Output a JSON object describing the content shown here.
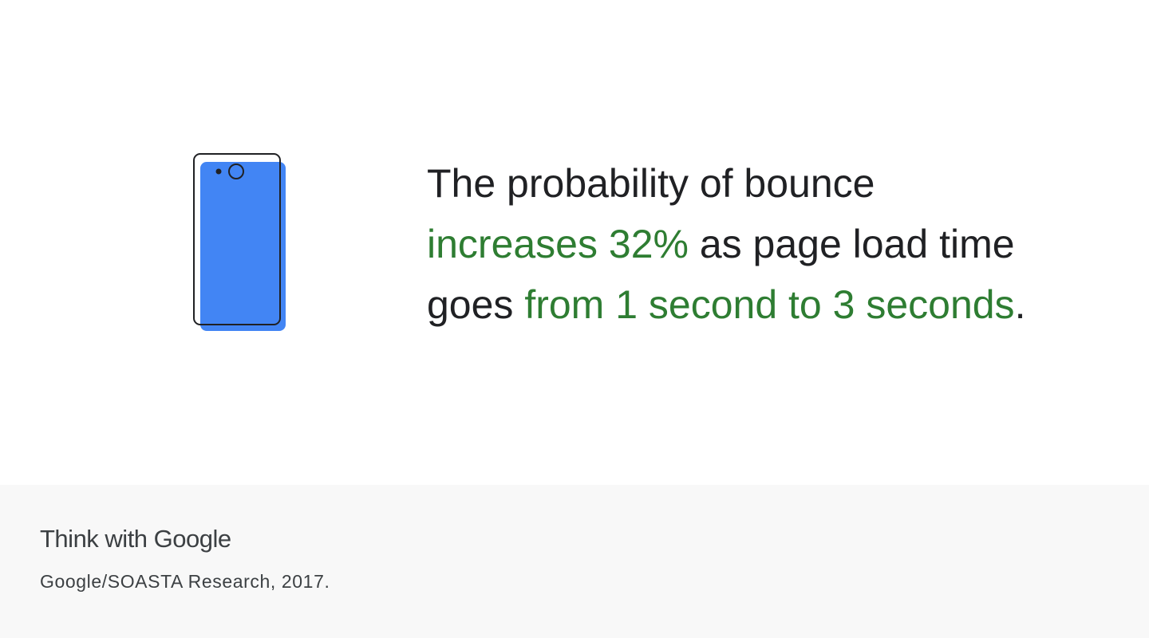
{
  "statement": {
    "lines": [
      [
        {
          "text": "The probability of bounce",
          "highlight": false
        }
      ],
      [
        {
          "text": "increases 32%",
          "highlight": true
        },
        {
          "text": " as page load time",
          "highlight": false
        }
      ],
      [
        {
          "text": "goes ",
          "highlight": false
        },
        {
          "text": "from 1 second to 3 seconds",
          "highlight": true
        },
        {
          "text": ".",
          "highlight": false
        }
      ]
    ],
    "colors": {
      "text": "#202124",
      "highlight": "#2e7d32"
    }
  },
  "footer": {
    "brand": "Think with Google",
    "source": "Google/SOASTA Research, 2017."
  }
}
